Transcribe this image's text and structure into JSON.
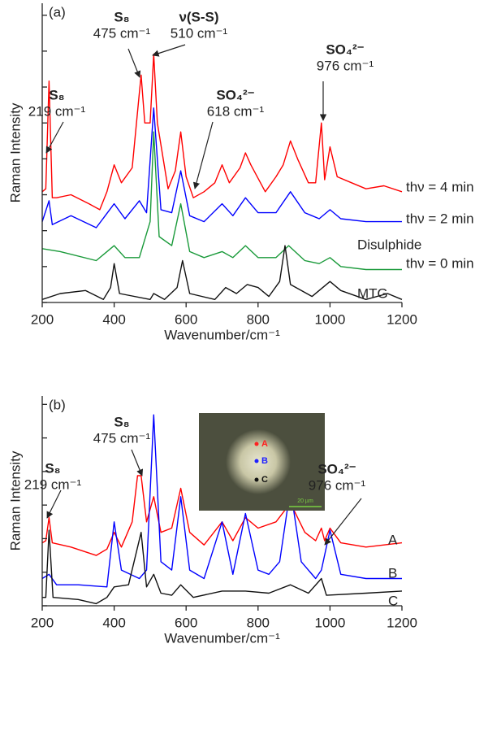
{
  "chart_data": [
    {
      "type": "line",
      "panel": "(a)",
      "ylabel": "Raman Intensity",
      "xlabel": "Wavenumber/cm⁻¹",
      "xlim": [
        200,
        1200
      ],
      "xticks": [
        200,
        400,
        600,
        800,
        1000,
        1200
      ],
      "ylim": [
        0,
        100
      ],
      "yticks": [
        0,
        12,
        24,
        36,
        48,
        60,
        72,
        84,
        96
      ],
      "series": [
        {
          "name": "thν = 4 min",
          "color": "#ff0000",
          "x": [
            200,
            210,
            219,
            228,
            240,
            280,
            330,
            360,
            380,
            400,
            420,
            450,
            470,
            475,
            485,
            500,
            510,
            520,
            550,
            570,
            585,
            600,
            620,
            650,
            680,
            700,
            720,
            750,
            765,
            780,
            820,
            850,
            870,
            890,
            910,
            940,
            960,
            976,
            985,
            1000,
            1020,
            1060,
            1100,
            1150,
            1200
          ],
          "values": [
            37,
            38,
            74,
            35,
            35,
            36,
            33,
            31,
            37,
            46,
            40,
            45,
            70,
            76,
            60,
            60,
            83,
            60,
            38,
            44,
            57,
            42,
            35,
            37,
            40,
            46,
            40,
            45,
            50,
            46,
            37,
            42,
            46,
            54,
            48,
            40,
            40,
            60,
            41,
            52,
            42,
            40,
            38,
            39,
            37
          ]
        },
        {
          "name": "thν = 2 min",
          "color": "#0000ff",
          "x": [
            200,
            219,
            228,
            280,
            350,
            400,
            430,
            470,
            490,
            510,
            530,
            560,
            585,
            610,
            650,
            700,
            730,
            765,
            800,
            850,
            890,
            930,
            970,
            1000,
            1030,
            1100,
            1200
          ],
          "values": [
            27,
            34,
            26,
            29,
            25,
            33,
            28,
            34,
            30,
            65,
            31,
            30,
            44,
            29,
            27,
            33,
            29,
            35,
            30,
            30,
            37,
            30,
            28,
            31,
            28,
            27,
            27
          ]
        },
        {
          "name": "Disulphide",
          "color": "#1a9a3a",
          "x": [
            200,
            250,
            350,
            400,
            430,
            470,
            500,
            510,
            525,
            560,
            585,
            610,
            650,
            700,
            730,
            765,
            800,
            850,
            885,
            930,
            970,
            1000,
            1030,
            1100,
            1200
          ],
          "values": [
            18,
            17,
            14,
            19,
            15,
            15,
            27,
            57,
            22,
            19,
            33,
            17,
            15,
            17,
            15,
            19,
            15,
            15,
            19,
            14,
            13,
            15,
            12,
            11,
            11
          ]
        },
        {
          "name": "MTG",
          "color": "#111111",
          "x": [
            200,
            250,
            320,
            370,
            390,
            400,
            415,
            500,
            510,
            540,
            575,
            590,
            610,
            680,
            710,
            740,
            770,
            800,
            830,
            860,
            875,
            890,
            950,
            1000,
            1030,
            1100,
            1160,
            1200
          ],
          "values": [
            1,
            3,
            4,
            1,
            5,
            13,
            3,
            1,
            3,
            1,
            5,
            14,
            3,
            1,
            5,
            3,
            6,
            5,
            2,
            7,
            19,
            6,
            2,
            7,
            4,
            1,
            3,
            1
          ]
        }
      ],
      "annotations": [
        {
          "lines": [
            "S₈",
            "219 cm⁻¹"
          ]
        },
        {
          "lines": [
            "S₈",
            "475 cm⁻¹"
          ]
        },
        {
          "lines": [
            "ν(S-S)",
            "510 cm⁻¹"
          ]
        },
        {
          "lines": [
            "SO₄²⁻",
            "618 cm⁻¹"
          ]
        },
        {
          "lines": [
            "SO₄²⁻",
            "976 cm⁻¹"
          ]
        },
        {
          "lines": [
            "thν = 0 min"
          ]
        }
      ]
    },
    {
      "type": "line",
      "panel": "(b)",
      "ylabel": "Raman Intensity",
      "xlabel": "Wavenumber/cm⁻¹",
      "xlim": [
        200,
        1200
      ],
      "xticks": [
        200,
        400,
        600,
        800,
        1000,
        1200
      ],
      "ylim": [
        0,
        100
      ],
      "yticks": [
        0,
        16,
        32,
        48,
        64,
        80,
        96
      ],
      "series": [
        {
          "name": "A",
          "color": "#ff0000",
          "x": [
            200,
            210,
            219,
            228,
            280,
            350,
            380,
            400,
            420,
            450,
            465,
            475,
            490,
            510,
            530,
            560,
            585,
            610,
            650,
            700,
            730,
            765,
            800,
            850,
            890,
            930,
            960,
            976,
            985,
            1000,
            1030,
            1100,
            1200
          ],
          "values": [
            30,
            31,
            42,
            30,
            28,
            24,
            27,
            35,
            28,
            40,
            62,
            62,
            40,
            52,
            35,
            37,
            56,
            35,
            29,
            40,
            31,
            42,
            37,
            40,
            49,
            35,
            31,
            37,
            31,
            37,
            30,
            28,
            30
          ]
        },
        {
          "name": "B",
          "color": "#0000ff",
          "x": [
            200,
            219,
            240,
            300,
            380,
            400,
            420,
            470,
            490,
            510,
            530,
            560,
            585,
            610,
            650,
            700,
            730,
            765,
            800,
            830,
            860,
            890,
            920,
            960,
            976,
            1000,
            1030,
            1100,
            1200
          ],
          "values": [
            13,
            15,
            10,
            10,
            9,
            40,
            17,
            13,
            17,
            91,
            21,
            17,
            52,
            17,
            13,
            40,
            15,
            44,
            17,
            15,
            21,
            56,
            21,
            13,
            17,
            36,
            15,
            13,
            13
          ]
        },
        {
          "name": "C",
          "color": "#111111",
          "x": [
            200,
            210,
            219,
            230,
            300,
            350,
            380,
            400,
            440,
            475,
            490,
            510,
            530,
            560,
            585,
            620,
            700,
            765,
            830,
            890,
            940,
            976,
            990,
            1100,
            1200
          ],
          "values": [
            4,
            4,
            36,
            4,
            3,
            1,
            4,
            9,
            10,
            35,
            9,
            15,
            6,
            5,
            10,
            4,
            7,
            7,
            6,
            10,
            6,
            13,
            5,
            6,
            7
          ]
        }
      ],
      "annotations": [
        {
          "lines": [
            "S₈",
            "219 cm⁻¹"
          ]
        },
        {
          "lines": [
            "S₈",
            "475 cm⁻¹"
          ]
        },
        {
          "lines": [
            "SO₄²⁻",
            "976 cm⁻¹"
          ]
        }
      ],
      "inset": {
        "spots": [
          "A",
          "B",
          "C"
        ],
        "scale_bar": "20 µm"
      }
    }
  ]
}
